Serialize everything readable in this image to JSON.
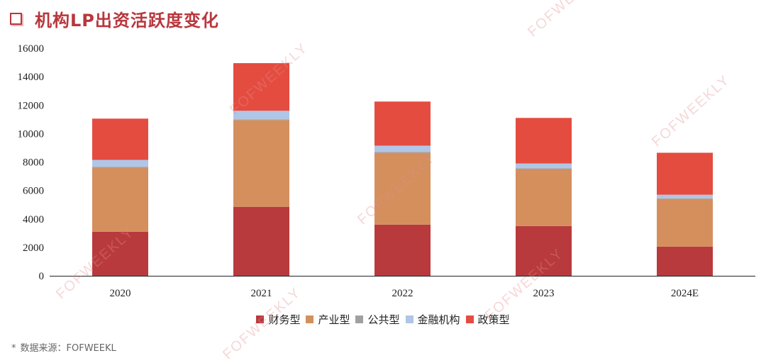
{
  "header": {
    "title": "机构LP出资活跃度变化"
  },
  "source": {
    "star": "*",
    "text": "数据来源：FOFWEEKL"
  },
  "watermark": "FOFWEEKLY",
  "chart_data": {
    "type": "bar",
    "stacked": true,
    "title": "机构LP出资活跃度变化",
    "categories": [
      "2020",
      "2021",
      "2022",
      "2023",
      "2024E"
    ],
    "ylim": [
      0,
      16000
    ],
    "yticks": [
      0,
      2000,
      4000,
      6000,
      8000,
      10000,
      12000,
      14000,
      16000
    ],
    "grid": false,
    "legend_position": "bottom",
    "series": [
      {
        "name": "财务型",
        "color": "#b83a3d",
        "values": [
          3100,
          4850,
          3600,
          3500,
          2050
        ]
      },
      {
        "name": "产业型",
        "color": "#d48f5d",
        "values": [
          4500,
          6100,
          5050,
          4000,
          3350
        ]
      },
      {
        "name": "公共型",
        "color": "#a0a0a0",
        "values": [
          50,
          50,
          50,
          50,
          50
        ]
      },
      {
        "name": "金融机构",
        "color": "#b0c6e6",
        "values": [
          500,
          600,
          450,
          350,
          250
        ]
      },
      {
        "name": "政策型",
        "color": "#e44c40",
        "values": [
          2900,
          3350,
          3100,
          3200,
          2950
        ]
      }
    ]
  }
}
